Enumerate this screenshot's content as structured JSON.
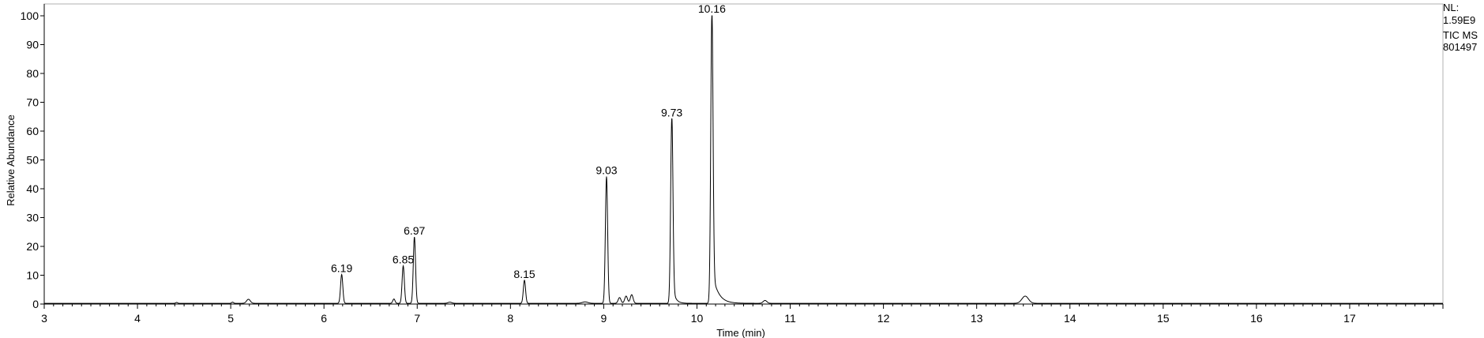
{
  "chart_data": {
    "type": "line",
    "xlabel": "Time (min)",
    "ylabel": "Relative Abundance",
    "xlim": [
      3,
      18
    ],
    "ylim": [
      0,
      100
    ],
    "x_ticks": [
      3,
      4,
      5,
      6,
      7,
      8,
      9,
      10,
      11,
      12,
      13,
      14,
      15,
      16,
      17
    ],
    "y_ticks": [
      0,
      10,
      20,
      30,
      40,
      50,
      60,
      70,
      80,
      90,
      100
    ],
    "grid": false,
    "line_color": "#000000",
    "peak_labels": [
      {
        "x": 6.19,
        "y": 10,
        "label": "6.19"
      },
      {
        "x": 6.85,
        "y": 13,
        "label": "6.85"
      },
      {
        "x": 6.97,
        "y": 23,
        "label": "6.97"
      },
      {
        "x": 8.15,
        "y": 8,
        "label": "8.15"
      },
      {
        "x": 9.03,
        "y": 44,
        "label": "9.03"
      },
      {
        "x": 9.73,
        "y": 64,
        "label": "9.73"
      },
      {
        "x": 10.16,
        "y": 100,
        "label": "10.16"
      }
    ],
    "minor_peaks": [
      {
        "x": 4.42,
        "y": 0.3,
        "w": 0.01
      },
      {
        "x": 5.02,
        "y": 0.4,
        "w": 0.01
      },
      {
        "x": 5.19,
        "y": 1.4,
        "w": 0.02
      },
      {
        "x": 6.75,
        "y": 1.5,
        "w": 0.012
      },
      {
        "x": 7.35,
        "y": 0.4,
        "w": 0.02
      },
      {
        "x": 8.8,
        "y": 0.5,
        "w": 0.03
      },
      {
        "x": 9.17,
        "y": 2.0,
        "w": 0.015
      },
      {
        "x": 9.24,
        "y": 2.5,
        "w": 0.015
      },
      {
        "x": 9.3,
        "y": 3.0,
        "w": 0.015
      },
      {
        "x": 10.73,
        "y": 1.0,
        "w": 0.02
      },
      {
        "x": 13.52,
        "y": 2.5,
        "w": 0.035
      }
    ],
    "tailing_peaks": [
      {
        "x": 9.73,
        "y": 64,
        "tail": 0.03
      },
      {
        "x": 10.16,
        "y": 100,
        "tail": 0.06
      }
    ]
  },
  "header": {
    "nl_label": "NL:",
    "nl_value": "1.59E9",
    "trace_type": "TIC  MS",
    "sample_id": "801497"
  }
}
